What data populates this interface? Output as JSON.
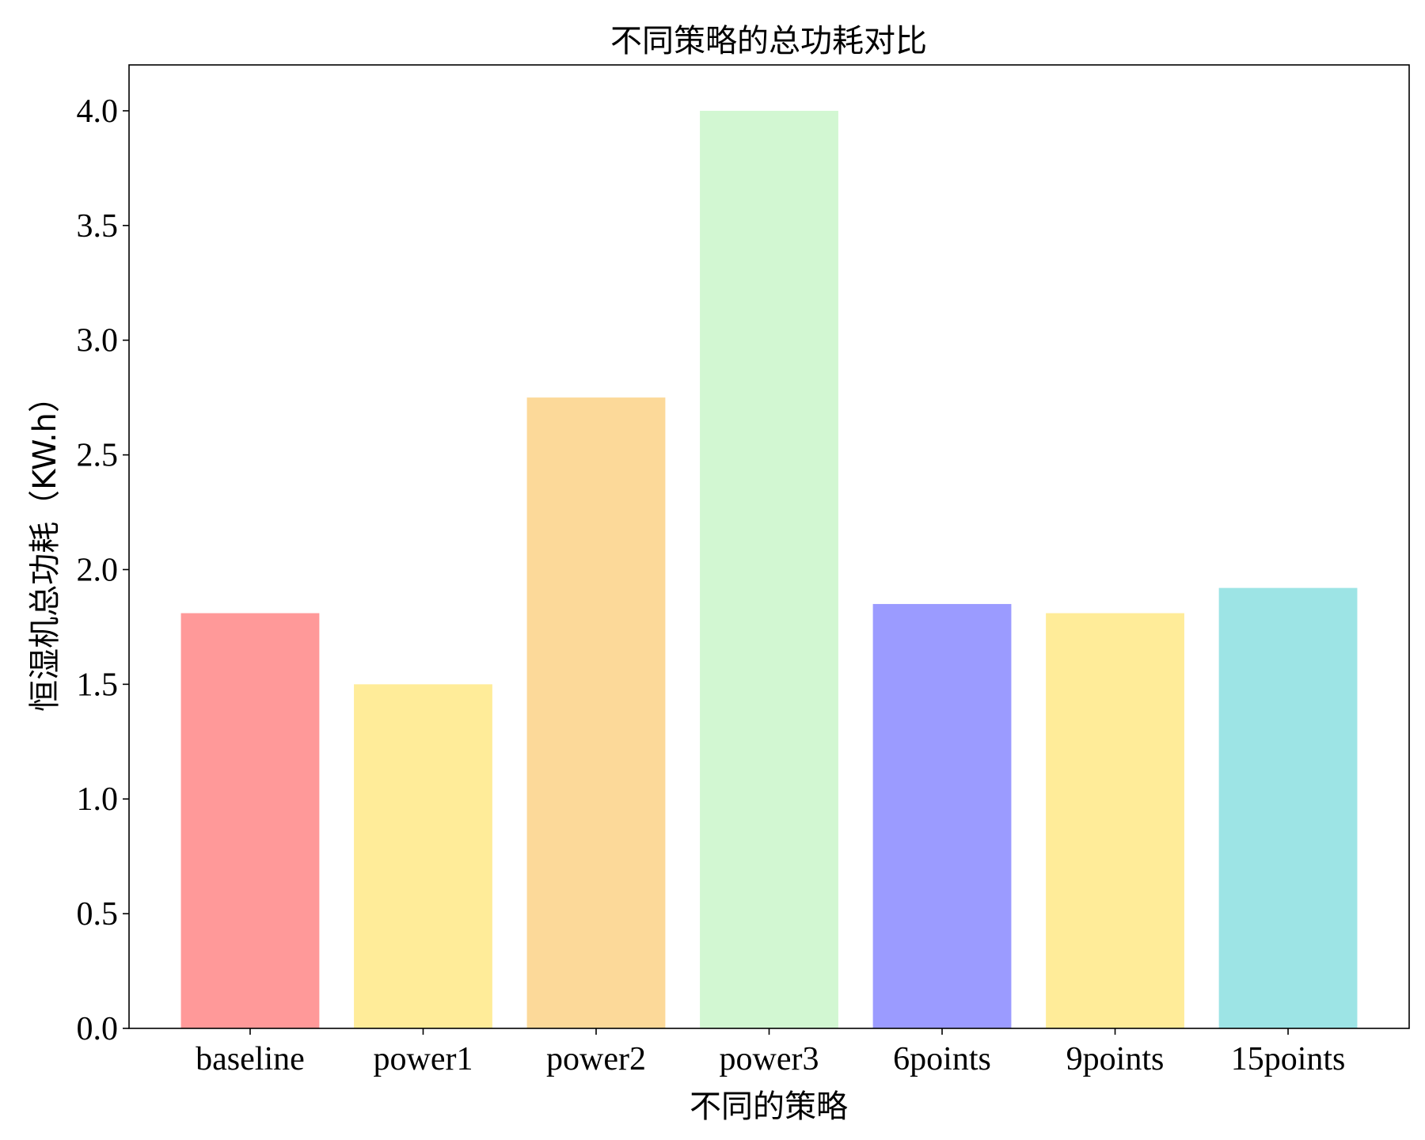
{
  "chart_data": {
    "type": "bar",
    "title": "不同策略的总功耗对比",
    "xlabel": "不同的策略",
    "ylabel": "恒湿机总功耗（KW.h）",
    "categories": [
      "baseline",
      "power1",
      "power2",
      "power3",
      "6points",
      "9points",
      "15points"
    ],
    "values": [
      1.81,
      1.5,
      2.75,
      4.0,
      1.85,
      1.81,
      1.92
    ],
    "colors": [
      "#ff9999",
      "#ffec99",
      "#fcd999",
      "#d2f7d2",
      "#9b9bff",
      "#ffec99",
      "#9de4e5"
    ],
    "ylim": [
      0,
      4.2
    ],
    "yticks": [
      "0.0",
      "0.5",
      "1.0",
      "1.5",
      "2.0",
      "2.5",
      "3.0",
      "3.5",
      "4.0"
    ],
    "grid": false,
    "legend": "none"
  }
}
